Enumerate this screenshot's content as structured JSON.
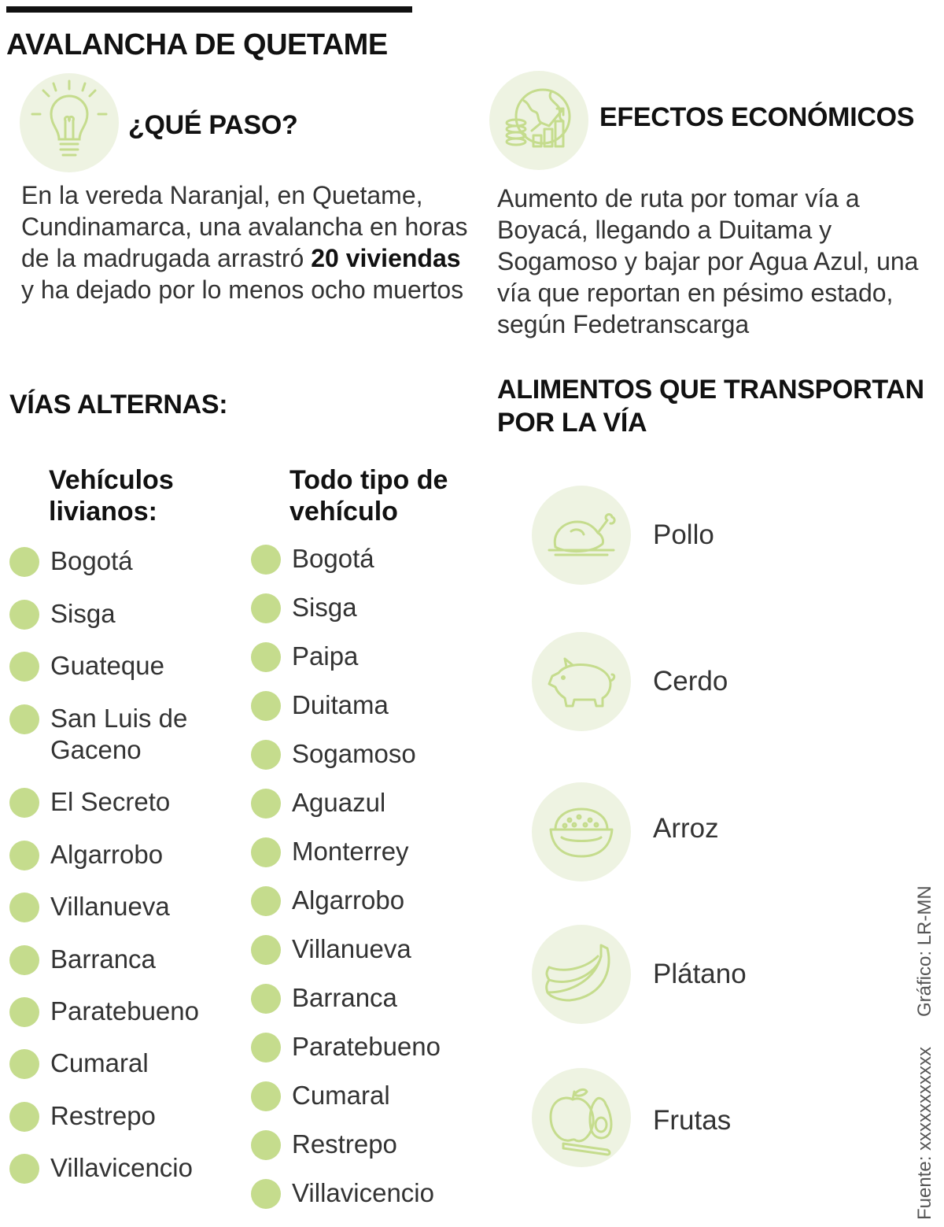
{
  "header": {
    "title": "AVALANCHA DE QUETAME"
  },
  "what_happened": {
    "heading": "¿QUÉ PASO?",
    "text_before": "En la vereda Naranjal, en Quetame, Cundinamarca, una avalancha en horas de la madrugada arrastró ",
    "text_bold": "20 viviendas",
    "text_after": " y ha dejado por lo menos ocho muertos"
  },
  "economic_effects": {
    "heading": "EFECTOS ECONÓMICOS",
    "text": "Aumento de ruta por tomar vía a Boyacá, llegando a Duitama y Sogamoso y bajar por Agua Azul, una vía que reportan en pésimo estado, según Fedetranscarga"
  },
  "alt_routes": {
    "heading": "VÍAS ALTERNAS:",
    "light": {
      "heading": "Vehículos livianos:",
      "items": [
        "Bogotá",
        "Sisga",
        "Guateque",
        "San Luis de Gaceno",
        "El Secreto",
        "Algarrobo",
        "Villanueva",
        "Barranca",
        "Paratebueno",
        "Cumaral",
        "Restrepo",
        "Villavicencio"
      ]
    },
    "all": {
      "heading": "Todo tipo de vehículo",
      "items": [
        "Bogotá",
        "Sisga",
        "Paipa",
        "Duitama",
        "Sogamoso",
        "Aguazul",
        "Monterrey",
        "Algarrobo",
        "Villanueva",
        "Barranca",
        "Paratebueno",
        "Cumaral",
        "Restrepo",
        "Villavicencio"
      ]
    }
  },
  "foods": {
    "heading": "ALIMENTOS QUE TRANSPORTAN POR LA VÍA",
    "items": [
      {
        "label": "Pollo",
        "icon": "chicken-icon"
      },
      {
        "label": "Cerdo",
        "icon": "pig-icon"
      },
      {
        "label": "Arroz",
        "icon": "rice-bowl-icon"
      },
      {
        "label": "Plátano",
        "icon": "banana-icon"
      },
      {
        "label": "Frutas",
        "icon": "fruits-icon"
      }
    ]
  },
  "credits": {
    "graphic": "Gráfico: LR-MN",
    "source": "Fuente: xxxxxxxxxxx"
  },
  "colors": {
    "accent": "#c5dc8d",
    "icon_bg": "#eef3e2",
    "icon_line": "#c5dc8d"
  }
}
